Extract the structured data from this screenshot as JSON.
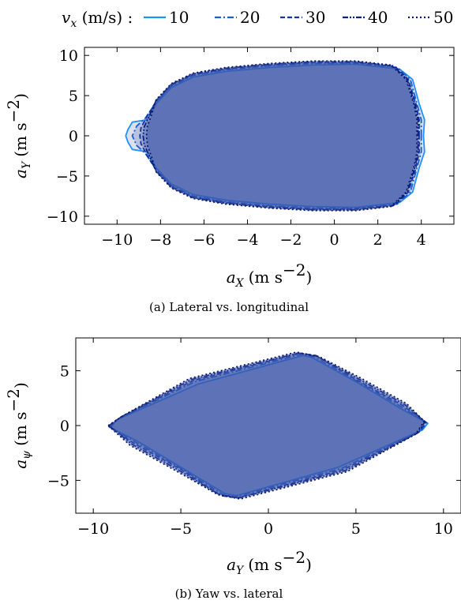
{
  "legend": {
    "label_var": "v",
    "label_sub": "x",
    "label_unit": " (m/s) :",
    "entries": [
      {
        "name": "10",
        "color": "#1e90ff",
        "dash": "none"
      },
      {
        "name": "20",
        "color": "#1a5fd0",
        "dash": "8 3 2 3"
      },
      {
        "name": "30",
        "color": "#1236a0",
        "dash": "6 3"
      },
      {
        "name": "40",
        "color": "#0b1f80",
        "dash": "7 2 2 2 2 2"
      },
      {
        "name": "50",
        "color": "#0a1a6a",
        "dash": "2 3"
      }
    ]
  },
  "colors": {
    "fill": "#3b55a8",
    "fill_light": "#5b78c8",
    "frame": "#000000"
  },
  "chart_data": [
    {
      "type": "area",
      "caption": "(a) Lateral vs. longitudinal",
      "xlabel_var": "a",
      "xlabel_sub": "X",
      "xlabel_unit": "(m s",
      "xlabel_exp": "−2",
      "ylabel_var": "a",
      "ylabel_sub": "Y",
      "ylabel_unit": "(m s",
      "ylabel_exp": "−2",
      "xlim": [
        -11.5,
        5.5
      ],
      "ylim": [
        -11,
        11
      ],
      "xticks": [
        -10,
        -8,
        -6,
        -4,
        -2,
        0,
        2,
        4
      ],
      "xtick_labels": [
        "−10",
        "−8",
        "−6",
        "−4",
        "−2",
        "0",
        "2",
        "4"
      ],
      "yticks": [
        -10,
        -5,
        0,
        5,
        10
      ],
      "ytick_labels": [
        "−10",
        "−5",
        "0",
        "5",
        "10"
      ],
      "series": [
        {
          "name": "10",
          "points": [
            [
              4.1,
              0
            ],
            [
              4.15,
              2
            ],
            [
              3.9,
              4
            ],
            [
              3.6,
              7
            ],
            [
              3,
              8.3
            ],
            [
              1,
              8.9
            ],
            [
              -1,
              8.8
            ],
            [
              -3,
              8.5
            ],
            [
              -5,
              8
            ],
            [
              -6.5,
              7.3
            ],
            [
              -7.5,
              6
            ],
            [
              -8.2,
              4
            ],
            [
              -8.6,
              2
            ],
            [
              -9.3,
              1.7
            ],
            [
              -9.5,
              0.8
            ],
            [
              -9.6,
              0
            ],
            [
              -9.5,
              -0.8
            ],
            [
              -9.3,
              -1.7
            ],
            [
              -8.6,
              -2
            ],
            [
              -8.2,
              -4
            ],
            [
              -7.5,
              -6
            ],
            [
              -6.5,
              -7.3
            ],
            [
              -5,
              -8
            ],
            [
              -3,
              -8.5
            ],
            [
              -1,
              -8.8
            ],
            [
              1,
              -8.9
            ],
            [
              3,
              -8.3
            ],
            [
              3.6,
              -7
            ],
            [
              3.9,
              -4
            ],
            [
              4.15,
              -2
            ],
            [
              4.1,
              0
            ]
          ]
        },
        {
          "name": "20",
          "points": [
            [
              4,
              0
            ],
            [
              4,
              2
            ],
            [
              3.8,
              4
            ],
            [
              3.5,
              7
            ],
            [
              2.9,
              8.5
            ],
            [
              1,
              9
            ],
            [
              -1,
              9
            ],
            [
              -3,
              8.7
            ],
            [
              -5,
              8.2
            ],
            [
              -6.5,
              7.5
            ],
            [
              -7.5,
              6.2
            ],
            [
              -8.2,
              4.2
            ],
            [
              -8.7,
              2.2
            ],
            [
              -9.1,
              1.2
            ],
            [
              -9.3,
              0
            ],
            [
              -9.1,
              -1.2
            ],
            [
              -8.7,
              -2.2
            ],
            [
              -8.2,
              -4.2
            ],
            [
              -7.5,
              -6.2
            ],
            [
              -6.5,
              -7.5
            ],
            [
              -5,
              -8.2
            ],
            [
              -3,
              -8.7
            ],
            [
              -1,
              -9
            ],
            [
              1,
              -9
            ],
            [
              2.9,
              -8.5
            ],
            [
              3.5,
              -7
            ],
            [
              3.8,
              -4
            ],
            [
              4,
              -2
            ],
            [
              4,
              0
            ]
          ]
        },
        {
          "name": "30",
          "points": [
            [
              3.9,
              0
            ],
            [
              3.9,
              2
            ],
            [
              3.75,
              4
            ],
            [
              3.4,
              7
            ],
            [
              2.8,
              8.6
            ],
            [
              1,
              9.1
            ],
            [
              -1,
              9.1
            ],
            [
              -3,
              8.8
            ],
            [
              -5,
              8.3
            ],
            [
              -6.5,
              7.6
            ],
            [
              -7.5,
              6.3
            ],
            [
              -8.2,
              4.3
            ],
            [
              -8.6,
              2.5
            ],
            [
              -8.9,
              1
            ],
            [
              -8.95,
              0
            ],
            [
              -8.9,
              -1
            ],
            [
              -8.6,
              -2.5
            ],
            [
              -8.2,
              -4.3
            ],
            [
              -7.5,
              -6.3
            ],
            [
              -6.5,
              -7.6
            ],
            [
              -5,
              -8.3
            ],
            [
              -3,
              -8.8
            ],
            [
              -1,
              -9.1
            ],
            [
              1,
              -9.1
            ],
            [
              2.8,
              -8.6
            ],
            [
              3.4,
              -7
            ],
            [
              3.75,
              -4
            ],
            [
              3.9,
              -2
            ],
            [
              3.9,
              0
            ]
          ]
        },
        {
          "name": "40",
          "points": [
            [
              3.85,
              0
            ],
            [
              3.85,
              2
            ],
            [
              3.7,
              4
            ],
            [
              3.35,
              7
            ],
            [
              2.7,
              8.7
            ],
            [
              1,
              9.2
            ],
            [
              -1,
              9.2
            ],
            [
              -3,
              8.9
            ],
            [
              -5,
              8.4
            ],
            [
              -6.5,
              7.7
            ],
            [
              -7.5,
              6.4
            ],
            [
              -8.2,
              4.4
            ],
            [
              -8.5,
              2.6
            ],
            [
              -8.75,
              1.1
            ],
            [
              -8.8,
              0
            ],
            [
              -8.75,
              -1.1
            ],
            [
              -8.5,
              -2.6
            ],
            [
              -8.2,
              -4.4
            ],
            [
              -7.5,
              -6.4
            ],
            [
              -6.5,
              -7.7
            ],
            [
              -5,
              -8.4
            ],
            [
              -3,
              -8.9
            ],
            [
              -1,
              -9.2
            ],
            [
              1,
              -9.2
            ],
            [
              2.7,
              -8.7
            ],
            [
              3.35,
              -7
            ],
            [
              3.7,
              -4
            ],
            [
              3.85,
              -2
            ],
            [
              3.85,
              0
            ]
          ]
        },
        {
          "name": "50",
          "points": [
            [
              3.8,
              0
            ],
            [
              3.8,
              2
            ],
            [
              3.65,
              4
            ],
            [
              3.3,
              7
            ],
            [
              2.6,
              8.8
            ],
            [
              1,
              9.3
            ],
            [
              -1,
              9.3
            ],
            [
              -3,
              9
            ],
            [
              -5,
              8.5
            ],
            [
              -6.5,
              7.8
            ],
            [
              -7.5,
              6.5
            ],
            [
              -8.2,
              4.5
            ],
            [
              -8.4,
              2.7
            ],
            [
              -8.6,
              1.2
            ],
            [
              -8.65,
              0
            ],
            [
              -8.6,
              -1.2
            ],
            [
              -8.4,
              -2.7
            ],
            [
              -8.2,
              -4.5
            ],
            [
              -7.5,
              -6.5
            ],
            [
              -6.5,
              -7.8
            ],
            [
              -5,
              -8.5
            ],
            [
              -3,
              -9
            ],
            [
              -1,
              -9.3
            ],
            [
              1,
              -9.3
            ],
            [
              2.6,
              -8.8
            ],
            [
              3.3,
              -7
            ],
            [
              3.65,
              -4
            ],
            [
              3.8,
              -2
            ],
            [
              3.8,
              0
            ]
          ]
        }
      ]
    },
    {
      "type": "area",
      "caption": "(b) Yaw vs. lateral",
      "xlabel_var": "a",
      "xlabel_sub": "Y",
      "xlabel_unit": "(m s",
      "xlabel_exp": "−2",
      "ylabel_var": "a",
      "ylabel_sub": "ψ",
      "ylabel_unit": "(m s",
      "ylabel_exp": "−2",
      "xlim": [
        -11,
        11
      ],
      "ylim": [
        -8,
        8
      ],
      "xticks": [
        -10,
        -5,
        0,
        5,
        10
      ],
      "xtick_labels": [
        "−10",
        "−5",
        "0",
        "5",
        "10"
      ],
      "yticks": [
        -5,
        0,
        5
      ],
      "ytick_labels": [
        "−5",
        "0",
        "5"
      ],
      "series": [
        {
          "name": "10",
          "points": [
            [
              -9,
              -0.2
            ],
            [
              -8.7,
              0.5
            ],
            [
              -4,
              3.8
            ],
            [
              2,
              6.4
            ],
            [
              2.5,
              6.2
            ],
            [
              5,
              4
            ],
            [
              7.5,
              1.6
            ],
            [
              9.1,
              0.2
            ],
            [
              8.8,
              -0.4
            ],
            [
              4,
              -3.8
            ],
            [
              -1.8,
              -6.4
            ],
            [
              -2.5,
              -6.2
            ],
            [
              -5,
              -3.8
            ],
            [
              -7.5,
              -1.4
            ],
            [
              -9,
              -0.2
            ]
          ]
        },
        {
          "name": "20",
          "points": [
            [
              -9.05,
              -0.15
            ],
            [
              -8.6,
              0.6
            ],
            [
              -4.2,
              4
            ],
            [
              1.9,
              6.5
            ],
            [
              2.6,
              6.3
            ],
            [
              5,
              4.1
            ],
            [
              7.6,
              1.7
            ],
            [
              9.05,
              0.25
            ],
            [
              8.7,
              -0.5
            ],
            [
              4.2,
              -3.9
            ],
            [
              -1.9,
              -6.5
            ],
            [
              -2.6,
              -6.3
            ],
            [
              -5,
              -3.9
            ],
            [
              -7.6,
              -1.5
            ],
            [
              -9.05,
              -0.15
            ]
          ]
        },
        {
          "name": "30",
          "points": [
            [
              -9.1,
              -0.1
            ],
            [
              -8.5,
              0.7
            ],
            [
              -4.3,
              4.1
            ],
            [
              1.8,
              6.6
            ],
            [
              2.7,
              6.4
            ],
            [
              5,
              4.2
            ],
            [
              7.7,
              1.8
            ],
            [
              9,
              0.3
            ],
            [
              8.6,
              -0.6
            ],
            [
              4.3,
              -4
            ],
            [
              -1.8,
              -6.6
            ],
            [
              -2.7,
              -6.4
            ],
            [
              -5,
              -4
            ],
            [
              -7.7,
              -1.6
            ],
            [
              -9.1,
              -0.1
            ]
          ]
        },
        {
          "name": "40",
          "points": [
            [
              -9.1,
              0
            ],
            [
              -8.4,
              0.8
            ],
            [
              -4.4,
              4.2
            ],
            [
              1.7,
              6.6
            ],
            [
              2.8,
              6.3
            ],
            [
              5.1,
              4.3
            ],
            [
              7.8,
              1.9
            ],
            [
              8.95,
              0.35
            ],
            [
              8.5,
              -0.7
            ],
            [
              4.4,
              -4.1
            ],
            [
              -1.7,
              -6.6
            ],
            [
              -2.8,
              -6.3
            ],
            [
              -5.1,
              -4.1
            ],
            [
              -7.8,
              -1.7
            ],
            [
              -9.1,
              0
            ]
          ]
        },
        {
          "name": "50",
          "points": [
            [
              -9.15,
              0
            ],
            [
              -8.3,
              0.9
            ],
            [
              -4.5,
              4.3
            ],
            [
              1.6,
              6.7
            ],
            [
              2.9,
              6.3
            ],
            [
              5.2,
              4.4
            ],
            [
              7.9,
              2
            ],
            [
              8.9,
              0.4
            ],
            [
              8.4,
              -0.8
            ],
            [
              4.5,
              -4.2
            ],
            [
              -1.6,
              -6.7
            ],
            [
              -2.9,
              -6.3
            ],
            [
              -5.2,
              -4.2
            ],
            [
              -7.9,
              -1.8
            ],
            [
              -9.15,
              0
            ]
          ]
        }
      ]
    }
  ]
}
